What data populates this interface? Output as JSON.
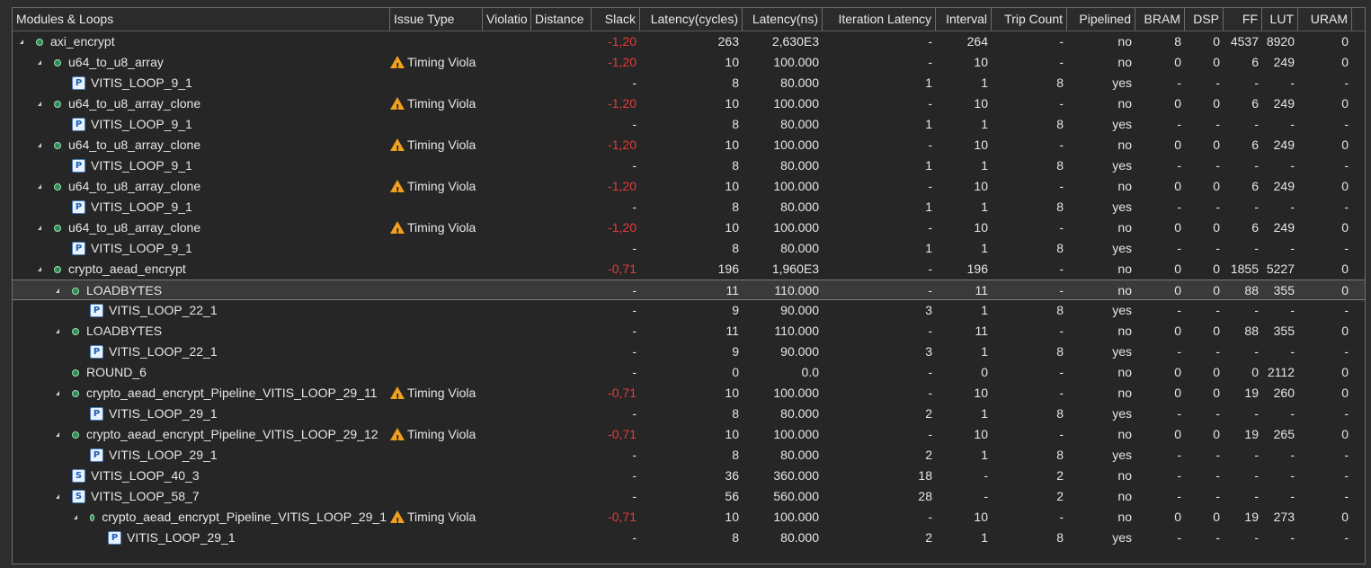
{
  "columns": [
    {
      "key": "name",
      "label": "Modules & Loops"
    },
    {
      "key": "issue",
      "label": "Issue Type"
    },
    {
      "key": "violation",
      "label": "Violatio"
    },
    {
      "key": "distance",
      "label": "Distance"
    },
    {
      "key": "slack",
      "label": "Slack"
    },
    {
      "key": "lat_cycles",
      "label": "Latency(cycles)"
    },
    {
      "key": "lat_ns",
      "label": "Latency(ns)"
    },
    {
      "key": "iter_lat",
      "label": "Iteration Latency"
    },
    {
      "key": "interval",
      "label": "Interval"
    },
    {
      "key": "trip",
      "label": "Trip Count"
    },
    {
      "key": "pipelined",
      "label": "Pipelined"
    },
    {
      "key": "bram",
      "label": "BRAM"
    },
    {
      "key": "dsp",
      "label": "DSP"
    },
    {
      "key": "ff",
      "label": "FF"
    },
    {
      "key": "lut",
      "label": "LUT"
    },
    {
      "key": "uram",
      "label": "URAM"
    }
  ],
  "rows": [
    {
      "level": 0,
      "kind": "module",
      "expand": true,
      "name": "axi_encrypt",
      "issue": "",
      "slack": "-1,20",
      "lat_cycles": "263",
      "lat_ns": "2,630E3",
      "iter_lat": "-",
      "interval": "264",
      "trip": "-",
      "pipelined": "no",
      "bram": "8",
      "dsp": "0",
      "ff": "4537",
      "lut": "8920",
      "uram": "0"
    },
    {
      "level": 1,
      "kind": "module",
      "expand": true,
      "name": "u64_to_u8_array",
      "issue": "Timing Viola",
      "slack": "-1,20",
      "lat_cycles": "10",
      "lat_ns": "100.000",
      "iter_lat": "-",
      "interval": "10",
      "trip": "-",
      "pipelined": "no",
      "bram": "0",
      "dsp": "0",
      "ff": "6",
      "lut": "249",
      "uram": "0"
    },
    {
      "level": 2,
      "kind": "loop",
      "loop_glyph": "P",
      "expand": false,
      "name": "VITIS_LOOP_9_1",
      "issue": "",
      "slack": "-",
      "lat_cycles": "8",
      "lat_ns": "80.000",
      "iter_lat": "1",
      "interval": "1",
      "trip": "8",
      "pipelined": "yes",
      "bram": "-",
      "dsp": "-",
      "ff": "-",
      "lut": "-",
      "uram": "-"
    },
    {
      "level": 1,
      "kind": "module",
      "expand": true,
      "name": "u64_to_u8_array_clone",
      "issue": "Timing Viola",
      "slack": "-1,20",
      "lat_cycles": "10",
      "lat_ns": "100.000",
      "iter_lat": "-",
      "interval": "10",
      "trip": "-",
      "pipelined": "no",
      "bram": "0",
      "dsp": "0",
      "ff": "6",
      "lut": "249",
      "uram": "0"
    },
    {
      "level": 2,
      "kind": "loop",
      "loop_glyph": "P",
      "expand": false,
      "name": "VITIS_LOOP_9_1",
      "issue": "",
      "slack": "-",
      "lat_cycles": "8",
      "lat_ns": "80.000",
      "iter_lat": "1",
      "interval": "1",
      "trip": "8",
      "pipelined": "yes",
      "bram": "-",
      "dsp": "-",
      "ff": "-",
      "lut": "-",
      "uram": "-"
    },
    {
      "level": 1,
      "kind": "module",
      "expand": true,
      "name": "u64_to_u8_array_clone",
      "issue": "Timing Viola",
      "slack": "-1,20",
      "lat_cycles": "10",
      "lat_ns": "100.000",
      "iter_lat": "-",
      "interval": "10",
      "trip": "-",
      "pipelined": "no",
      "bram": "0",
      "dsp": "0",
      "ff": "6",
      "lut": "249",
      "uram": "0"
    },
    {
      "level": 2,
      "kind": "loop",
      "loop_glyph": "P",
      "expand": false,
      "name": "VITIS_LOOP_9_1",
      "issue": "",
      "slack": "-",
      "lat_cycles": "8",
      "lat_ns": "80.000",
      "iter_lat": "1",
      "interval": "1",
      "trip": "8",
      "pipelined": "yes",
      "bram": "-",
      "dsp": "-",
      "ff": "-",
      "lut": "-",
      "uram": "-"
    },
    {
      "level": 1,
      "kind": "module",
      "expand": true,
      "name": "u64_to_u8_array_clone",
      "issue": "Timing Viola",
      "slack": "-1,20",
      "lat_cycles": "10",
      "lat_ns": "100.000",
      "iter_lat": "-",
      "interval": "10",
      "trip": "-",
      "pipelined": "no",
      "bram": "0",
      "dsp": "0",
      "ff": "6",
      "lut": "249",
      "uram": "0"
    },
    {
      "level": 2,
      "kind": "loop",
      "loop_glyph": "P",
      "expand": false,
      "name": "VITIS_LOOP_9_1",
      "issue": "",
      "slack": "-",
      "lat_cycles": "8",
      "lat_ns": "80.000",
      "iter_lat": "1",
      "interval": "1",
      "trip": "8",
      "pipelined": "yes",
      "bram": "-",
      "dsp": "-",
      "ff": "-",
      "lut": "-",
      "uram": "-"
    },
    {
      "level": 1,
      "kind": "module",
      "expand": true,
      "name": "u64_to_u8_array_clone",
      "issue": "Timing Viola",
      "slack": "-1,20",
      "lat_cycles": "10",
      "lat_ns": "100.000",
      "iter_lat": "-",
      "interval": "10",
      "trip": "-",
      "pipelined": "no",
      "bram": "0",
      "dsp": "0",
      "ff": "6",
      "lut": "249",
      "uram": "0"
    },
    {
      "level": 2,
      "kind": "loop",
      "loop_glyph": "P",
      "expand": false,
      "name": "VITIS_LOOP_9_1",
      "issue": "",
      "slack": "-",
      "lat_cycles": "8",
      "lat_ns": "80.000",
      "iter_lat": "1",
      "interval": "1",
      "trip": "8",
      "pipelined": "yes",
      "bram": "-",
      "dsp": "-",
      "ff": "-",
      "lut": "-",
      "uram": "-"
    },
    {
      "level": 1,
      "kind": "module",
      "expand": true,
      "name": "crypto_aead_encrypt",
      "issue": "",
      "slack": "-0,71",
      "lat_cycles": "196",
      "lat_ns": "1,960E3",
      "iter_lat": "-",
      "interval": "196",
      "trip": "-",
      "pipelined": "no",
      "bram": "0",
      "dsp": "0",
      "ff": "1855",
      "lut": "5227",
      "uram": "0"
    },
    {
      "level": 2,
      "kind": "module",
      "expand": true,
      "selected": true,
      "name": "LOADBYTES",
      "issue": "",
      "slack": "-",
      "lat_cycles": "11",
      "lat_ns": "110.000",
      "iter_lat": "-",
      "interval": "11",
      "trip": "-",
      "pipelined": "no",
      "bram": "0",
      "dsp": "0",
      "ff": "88",
      "lut": "355",
      "uram": "0"
    },
    {
      "level": 3,
      "kind": "loop",
      "loop_glyph": "P",
      "expand": false,
      "name": "VITIS_LOOP_22_1",
      "issue": "",
      "slack": "-",
      "lat_cycles": "9",
      "lat_ns": "90.000",
      "iter_lat": "3",
      "interval": "1",
      "trip": "8",
      "pipelined": "yes",
      "bram": "-",
      "dsp": "-",
      "ff": "-",
      "lut": "-",
      "uram": "-"
    },
    {
      "level": 2,
      "kind": "module",
      "expand": true,
      "name": "LOADBYTES",
      "issue": "",
      "slack": "-",
      "lat_cycles": "11",
      "lat_ns": "110.000",
      "iter_lat": "-",
      "interval": "11",
      "trip": "-",
      "pipelined": "no",
      "bram": "0",
      "dsp": "0",
      "ff": "88",
      "lut": "355",
      "uram": "0"
    },
    {
      "level": 3,
      "kind": "loop",
      "loop_glyph": "P",
      "expand": false,
      "name": "VITIS_LOOP_22_1",
      "issue": "",
      "slack": "-",
      "lat_cycles": "9",
      "lat_ns": "90.000",
      "iter_lat": "3",
      "interval": "1",
      "trip": "8",
      "pipelined": "yes",
      "bram": "-",
      "dsp": "-",
      "ff": "-",
      "lut": "-",
      "uram": "-"
    },
    {
      "level": 2,
      "kind": "module",
      "expand": false,
      "name": "ROUND_6",
      "issue": "",
      "slack": "-",
      "lat_cycles": "0",
      "lat_ns": "0.0",
      "iter_lat": "-",
      "interval": "0",
      "trip": "-",
      "pipelined": "no",
      "bram": "0",
      "dsp": "0",
      "ff": "0",
      "lut": "2112",
      "uram": "0"
    },
    {
      "level": 2,
      "kind": "module",
      "expand": true,
      "name": "crypto_aead_encrypt_Pipeline_VITIS_LOOP_29_11",
      "issue": "Timing Viola",
      "slack": "-0,71",
      "lat_cycles": "10",
      "lat_ns": "100.000",
      "iter_lat": "-",
      "interval": "10",
      "trip": "-",
      "pipelined": "no",
      "bram": "0",
      "dsp": "0",
      "ff": "19",
      "lut": "260",
      "uram": "0"
    },
    {
      "level": 3,
      "kind": "loop",
      "loop_glyph": "P",
      "expand": false,
      "name": "VITIS_LOOP_29_1",
      "issue": "",
      "slack": "-",
      "lat_cycles": "8",
      "lat_ns": "80.000",
      "iter_lat": "2",
      "interval": "1",
      "trip": "8",
      "pipelined": "yes",
      "bram": "-",
      "dsp": "-",
      "ff": "-",
      "lut": "-",
      "uram": "-"
    },
    {
      "level": 2,
      "kind": "module",
      "expand": true,
      "name": "crypto_aead_encrypt_Pipeline_VITIS_LOOP_29_12",
      "issue": "Timing Viola",
      "slack": "-0,71",
      "lat_cycles": "10",
      "lat_ns": "100.000",
      "iter_lat": "-",
      "interval": "10",
      "trip": "-",
      "pipelined": "no",
      "bram": "0",
      "dsp": "0",
      "ff": "19",
      "lut": "265",
      "uram": "0"
    },
    {
      "level": 3,
      "kind": "loop",
      "loop_glyph": "P",
      "expand": false,
      "name": "VITIS_LOOP_29_1",
      "issue": "",
      "slack": "-",
      "lat_cycles": "8",
      "lat_ns": "80.000",
      "iter_lat": "2",
      "interval": "1",
      "trip": "8",
      "pipelined": "yes",
      "bram": "-",
      "dsp": "-",
      "ff": "-",
      "lut": "-",
      "uram": "-"
    },
    {
      "level": 2,
      "kind": "loop",
      "loop_glyph": "S",
      "expand": false,
      "name": "VITIS_LOOP_40_3",
      "issue": "",
      "slack": "-",
      "lat_cycles": "36",
      "lat_ns": "360.000",
      "iter_lat": "18",
      "interval": "-",
      "trip": "2",
      "pipelined": "no",
      "bram": "-",
      "dsp": "-",
      "ff": "-",
      "lut": "-",
      "uram": "-"
    },
    {
      "level": 2,
      "kind": "loop",
      "loop_glyph": "S",
      "expand": true,
      "name": "VITIS_LOOP_58_7",
      "issue": "",
      "slack": "-",
      "lat_cycles": "56",
      "lat_ns": "560.000",
      "iter_lat": "28",
      "interval": "-",
      "trip": "2",
      "pipelined": "no",
      "bram": "-",
      "dsp": "-",
      "ff": "-",
      "lut": "-",
      "uram": "-"
    },
    {
      "level": 3,
      "kind": "module",
      "expand": true,
      "name": "crypto_aead_encrypt_Pipeline_VITIS_LOOP_29_1",
      "issue": "Timing Viola",
      "slack": "-0,71",
      "lat_cycles": "10",
      "lat_ns": "100.000",
      "iter_lat": "-",
      "interval": "10",
      "trip": "-",
      "pipelined": "no",
      "bram": "0",
      "dsp": "0",
      "ff": "19",
      "lut": "273",
      "uram": "0"
    },
    {
      "level": 4,
      "kind": "loop",
      "loop_glyph": "P",
      "expand": false,
      "name": "VITIS_LOOP_29_1",
      "issue": "",
      "slack": "-",
      "lat_cycles": "8",
      "lat_ns": "80.000",
      "iter_lat": "2",
      "interval": "1",
      "trip": "8",
      "pipelined": "yes",
      "bram": "-",
      "dsp": "-",
      "ff": "-",
      "lut": "-",
      "uram": "-"
    }
  ],
  "colors": {
    "background": "#262626",
    "negative_slack": "#e43b3b",
    "warning": "#f0a020",
    "module_dot": "#2e8b57",
    "loop_icon": "#1f5fb0"
  },
  "icons": {
    "expand": "triangle-down-icon",
    "module": "module-dot-icon",
    "pipelined_loop": "pipeline-loop-icon",
    "sequential_loop": "sequential-loop-icon",
    "warning": "warning-icon"
  }
}
